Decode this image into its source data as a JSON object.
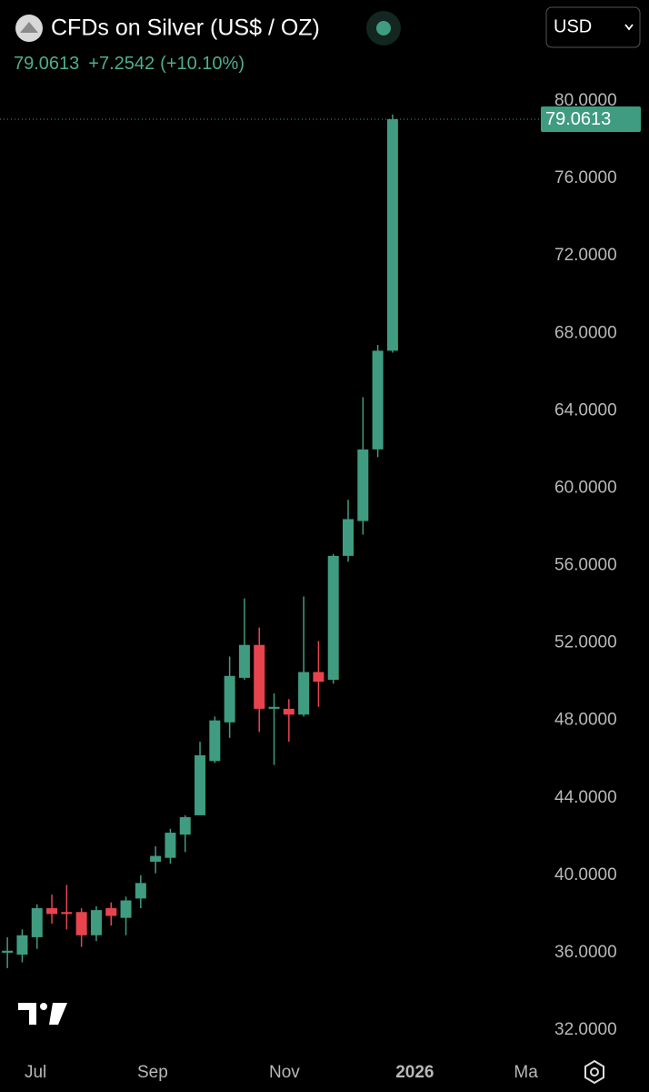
{
  "header": {
    "title": "CFDs on Silver (US$ / OZ)",
    "change": "+7.2542",
    "change_pct": "(+10.10%)",
    "currency": "USD"
  },
  "chart_data": {
    "type": "candlestick",
    "last_price": 79.0613,
    "up_color": "#3f9c80",
    "down_color": "#e8444e",
    "open": [
      36.0,
      35.9,
      36.8,
      38.3,
      38.1,
      38.1,
      36.9,
      38.3,
      37.8,
      38.8,
      40.7,
      40.9,
      42.1,
      43.1,
      45.9,
      47.9,
      50.2,
      51.9,
      48.6,
      48.6,
      48.3,
      50.5,
      50.1,
      56.5,
      58.3,
      62.0,
      67.1
    ],
    "high": [
      36.8,
      37.2,
      38.5,
      39.0,
      39.5,
      38.3,
      38.4,
      38.6,
      38.9,
      40.0,
      41.5,
      42.4,
      43.1,
      46.9,
      48.2,
      51.3,
      54.3,
      52.8,
      49.4,
      49.1,
      54.4,
      52.1,
      56.6,
      59.4,
      64.7,
      67.4,
      79.3
    ],
    "low": [
      35.2,
      35.5,
      36.2,
      37.5,
      37.2,
      36.3,
      36.6,
      37.4,
      36.9,
      38.3,
      40.1,
      40.6,
      41.2,
      43.1,
      45.8,
      47.1,
      50.1,
      47.4,
      45.7,
      46.9,
      48.2,
      48.7,
      49.9,
      56.2,
      57.6,
      61.6,
      67.0
    ],
    "close": [
      36.1,
      36.9,
      38.3,
      38.0,
      38.0,
      36.9,
      38.2,
      37.9,
      38.7,
      39.6,
      41.0,
      42.2,
      43.0,
      46.2,
      48.0,
      50.3,
      51.9,
      48.6,
      48.7,
      48.3,
      50.5,
      50.0,
      56.5,
      58.4,
      62.0,
      67.1,
      79.0613
    ],
    "xlim": [
      -0.5,
      35.7
    ],
    "xticks": [
      {
        "value": 1.9,
        "label": "Jul"
      },
      {
        "value": 9.8,
        "label": "Sep"
      },
      {
        "value": 18.7,
        "label": "Nov"
      },
      {
        "value": 27.5,
        "label": "2026"
      },
      {
        "value": 35,
        "label": "Ma"
      }
    ],
    "ylim": [
      32,
      80
    ],
    "yticks": [
      {
        "value": 32,
        "label": "32.0000"
      },
      {
        "value": 36,
        "label": "36.0000"
      },
      {
        "value": 40,
        "label": "40.0000"
      },
      {
        "value": 44,
        "label": "44.0000"
      },
      {
        "value": 48,
        "label": "48.0000"
      },
      {
        "value": 52,
        "label": "52.0000"
      },
      {
        "value": 56,
        "label": "56.0000"
      },
      {
        "value": 60,
        "label": "60.0000"
      },
      {
        "value": 64,
        "label": "64.0000"
      },
      {
        "value": 68,
        "label": "68.0000"
      },
      {
        "value": 72,
        "label": "72.0000"
      },
      {
        "value": 76,
        "label": "76.0000"
      },
      {
        "value": 80,
        "label": "80.0000"
      }
    ]
  }
}
